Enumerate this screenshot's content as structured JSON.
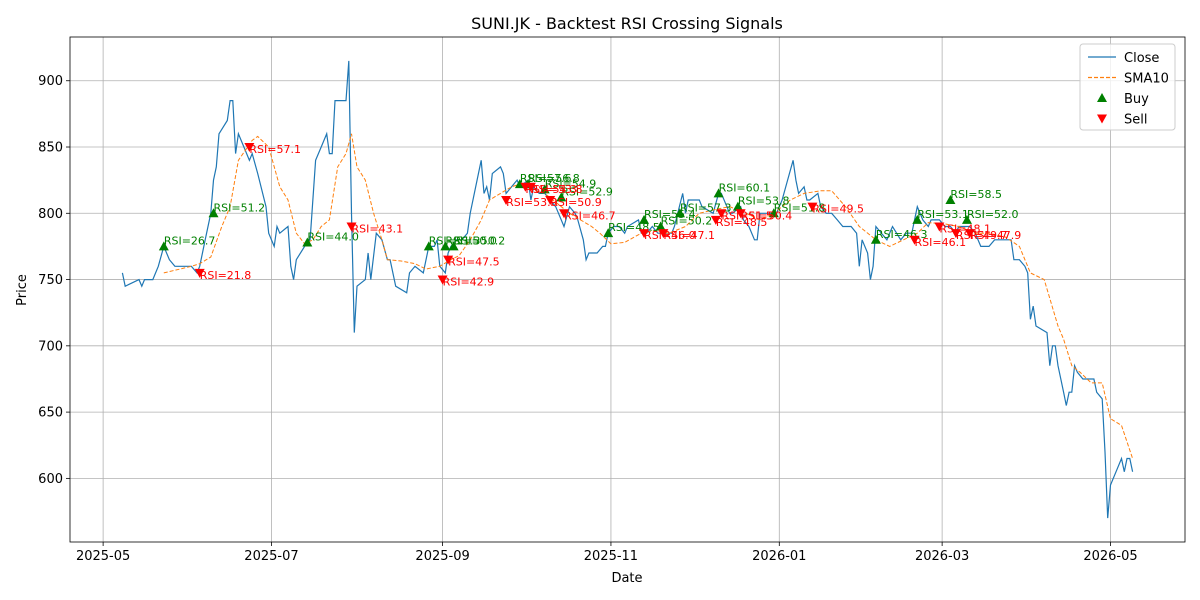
{
  "chart_data": {
    "type": "line",
    "title": "SUNI.JK - Backtest RSI Crossing Signals",
    "xlabel": "Date",
    "ylabel": "Price",
    "grid": true,
    "legend": "upper right",
    "xlim": [
      20197,
      20601
    ],
    "ylim": [
      552,
      933
    ],
    "xticks": [
      {
        "value": 20209,
        "label": "2025-05"
      },
      {
        "value": 20270,
        "label": "2025-07"
      },
      {
        "value": 20332,
        "label": "2025-09"
      },
      {
        "value": 20393,
        "label": "2025-11"
      },
      {
        "value": 20454,
        "label": "2026-01"
      },
      {
        "value": 20513,
        "label": "2026-03"
      },
      {
        "value": 20574,
        "label": "2026-05"
      }
    ],
    "yticks": [
      600,
      650,
      700,
      750,
      800,
      850,
      900
    ],
    "series": [
      {
        "name": "Close",
        "type": "line",
        "color": "#1f77b4",
        "linestyle": "solid",
        "x": [
          20216,
          20217,
          20222,
          20223,
          20224,
          20227,
          20229,
          20231,
          20233,
          20235,
          20241,
          20243,
          20244,
          20246,
          20248,
          20249,
          20250,
          20251,
          20254,
          20255,
          20256,
          20257,
          20258,
          20260,
          20262,
          20263,
          20265,
          20268,
          20269,
          20271,
          20272,
          20273,
          20276,
          20277,
          20278,
          20279,
          20282,
          20284,
          20286,
          20288,
          20290,
          20291,
          20292,
          20293,
          20297,
          20298,
          20299,
          20300,
          20301,
          20304,
          20305,
          20306,
          20308,
          20310,
          20312,
          20313,
          20315,
          20319,
          20320,
          20322,
          20325,
          20327,
          20329,
          20330,
          20331,
          20333,
          20334,
          20335,
          20337,
          20339,
          20341,
          20342,
          20344,
          20346,
          20347,
          20348,
          20349,
          20350,
          20353,
          20354,
          20355,
          20357,
          20359,
          20360,
          20363,
          20364,
          20365,
          20367,
          20369,
          20371,
          20373,
          20374,
          20376,
          20378,
          20380,
          20381,
          20383,
          20384,
          20385,
          20388,
          20390,
          20391,
          20392,
          20394,
          20396,
          20398,
          20399,
          20403,
          20404,
          20406,
          20408,
          20410,
          20413,
          20415,
          20416,
          20419,
          20420,
          20421,
          20425,
          20426,
          20430,
          20432,
          20433,
          20435,
          20436,
          20437,
          20440,
          20441,
          20443,
          20445,
          20446,
          20447,
          20449,
          20451,
          20453,
          20455,
          20457,
          20459,
          20460,
          20461,
          20463,
          20464,
          20465,
          20468,
          20469,
          20471,
          20473,
          20475,
          20477,
          20480,
          20482,
          20483,
          20484,
          20486,
          20487,
          20488,
          20489,
          20491,
          20493,
          20495,
          20498,
          20500,
          20502,
          20504,
          20506,
          20508,
          20509,
          20512,
          20514,
          20516,
          20518,
          20519,
          20521,
          20523,
          20525,
          20527,
          20529,
          20530,
          20532,
          20536,
          20538,
          20539,
          20541,
          20543,
          20544,
          20545,
          20546,
          20547,
          20551,
          20552,
          20553,
          20554,
          20555,
          20557,
          20558,
          20559,
          20560,
          20561,
          20562,
          20564,
          20565,
          20566,
          20568,
          20569,
          20571,
          20572,
          20573,
          20574,
          20576,
          20578,
          20579,
          20580,
          20581,
          20582
        ],
        "values": [
          755,
          745,
          750,
          745,
          750,
          750,
          760,
          775,
          765,
          760,
          760,
          755,
          760,
          780,
          800,
          825,
          835,
          860,
          870,
          885,
          885,
          845,
          860,
          850,
          840,
          845,
          830,
          805,
          785,
          775,
          790,
          785,
          790,
          760,
          750,
          765,
          775,
          780,
          840,
          850,
          860,
          845,
          845,
          885,
          885,
          915,
          800,
          710,
          745,
          750,
          770,
          750,
          785,
          780,
          765,
          765,
          745,
          740,
          755,
          760,
          755,
          775,
          775,
          780,
          760,
          755,
          770,
          775,
          780,
          780,
          785,
          800,
          820,
          840,
          815,
          820,
          810,
          830,
          835,
          830,
          815,
          820,
          825,
          820,
          825,
          810,
          820,
          815,
          815,
          810,
          805,
          800,
          790,
          805,
          800,
          795,
          780,
          765,
          770,
          770,
          775,
          775,
          785,
          790,
          790,
          785,
          790,
          795,
          785,
          785,
          790,
          785,
          785,
          785,
          790,
          815,
          800,
          810,
          810,
          805,
          800,
          815,
          815,
          805,
          800,
          800,
          805,
          795,
          790,
          780,
          780,
          800,
          800,
          800,
          800,
          810,
          825,
          840,
          825,
          815,
          820,
          810,
          810,
          815,
          805,
          800,
          800,
          795,
          790,
          790,
          785,
          760,
          780,
          770,
          750,
          760,
          790,
          785,
          780,
          790,
          780,
          785,
          785,
          805,
          795,
          790,
          795,
          795,
          790,
          790,
          785,
          790,
          790,
          790,
          785,
          775,
          775,
          775,
          780,
          780,
          780,
          765,
          765,
          760,
          755,
          720,
          730,
          715,
          710,
          685,
          700,
          700,
          685,
          665,
          655,
          665,
          665,
          685,
          680,
          675,
          675,
          675,
          675,
          665,
          660,
          620,
          570,
          595,
          605,
          615,
          605,
          615,
          615,
          605
        ]
      },
      {
        "name": "SMA10",
        "type": "line",
        "color": "#ff7f0e",
        "linestyle": "dashed",
        "x": [
          20231,
          20241,
          20244,
          20248,
          20252,
          20255,
          20258,
          20263,
          20265,
          20269,
          20273,
          20276,
          20279,
          20282,
          20285,
          20288,
          20291,
          20294,
          20297,
          20299,
          20301,
          20304,
          20307,
          20310,
          20312,
          20317,
          20322,
          20326,
          20331,
          20335,
          20338,
          20342,
          20346,
          20349,
          20353,
          20357,
          20360,
          20364,
          20369,
          20375,
          20378,
          20382,
          20386,
          20389,
          20393,
          20398,
          20404,
          20409,
          20414,
          20420,
          20425,
          20431,
          20436,
          20442,
          20447,
          20452,
          20458,
          20463,
          20469,
          20473,
          20478,
          20483,
          20489,
          20494,
          20499,
          20504,
          20508,
          20514,
          20519,
          20525,
          20530,
          20536,
          20541,
          20545,
          20550,
          20555,
          20557,
          20560,
          20563,
          20567,
          20571,
          20574,
          20578,
          20582
        ],
        "values": [
          755,
          760,
          762,
          767,
          790,
          805,
          840,
          855,
          858,
          850,
          820,
          810,
          785,
          777,
          780,
          790,
          795,
          835,
          845,
          860,
          835,
          825,
          800,
          780,
          765,
          764,
          762,
          758,
          760,
          765,
          768,
          780,
          795,
          810,
          815,
          820,
          822,
          818,
          815,
          805,
          800,
          795,
          790,
          785,
          777,
          778,
          785,
          787,
          785,
          790,
          800,
          803,
          805,
          800,
          795,
          800,
          810,
          815,
          817,
          817,
          805,
          790,
          780,
          775,
          780,
          785,
          793,
          792,
          790,
          785,
          785,
          782,
          775,
          755,
          750,
          715,
          705,
          685,
          680,
          672,
          672,
          645,
          640,
          615
        ]
      },
      {
        "name": "Buy",
        "type": "scatter",
        "marker": "up",
        "color": "#008000",
        "x": [
          20231,
          20249,
          20283,
          20327,
          20333,
          20336,
          20360,
          20363,
          20369,
          20375,
          20392,
          20405,
          20411,
          20418,
          20432,
          20439,
          20452,
          20489,
          20504,
          20516,
          20522
        ],
        "values": [
          775,
          800,
          778,
          775,
          775,
          775,
          822,
          822,
          818,
          812,
          785,
          795,
          790,
          800,
          815,
          805,
          800,
          780,
          795,
          810,
          795
        ],
        "labels": [
          "RSI=26.7",
          "RSI=51.2",
          "RSI=44.0",
          "RSI=51.3",
          "RSI=50.0",
          "RSI=50.2",
          "RSI=57.6",
          "RSI=56.8",
          "RSI=54.9",
          "RSI=52.9",
          "RSI=48.5",
          "RSI=55.4",
          "RSI=50.2",
          "RSI=57.3",
          "RSI=60.1",
          "RSI=53.8",
          "RSI=51.8",
          "RSI=46.3",
          "RSI=53.1",
          "RSI=58.5",
          "RSI=52.0"
        ]
      },
      {
        "name": "Sell",
        "type": "scatter",
        "marker": "down",
        "color": "#ff0000",
        "x": [
          20244,
          20262,
          20299,
          20332,
          20334,
          20355,
          20362,
          20364,
          20371,
          20376,
          20405,
          20412,
          20431,
          20433,
          20440,
          20466,
          20503,
          20512,
          20518,
          20523
        ],
        "values": [
          755,
          850,
          790,
          750,
          765,
          810,
          820,
          820,
          810,
          800,
          785,
          785,
          795,
          800,
          800,
          805,
          780,
          790,
          785,
          785
        ],
        "labels": [
          "RSI=21.8",
          "RSI=57.1",
          "RSI=43.1",
          "RSI=42.9",
          "RSI=47.5",
          "RSI=53.0",
          "RSI=54.3",
          "RSI=53.8",
          "RSI=50.9",
          "RSI=46.7",
          "RSI=46.0",
          "RSI=47.1",
          "RSI=48.5",
          "RSI=51.5",
          "RSI=50.4",
          "RSI=49.5",
          "RSI=46.1",
          "RSI=48.1",
          "RSI=49.7",
          "RSI=47.9"
        ]
      }
    ]
  }
}
